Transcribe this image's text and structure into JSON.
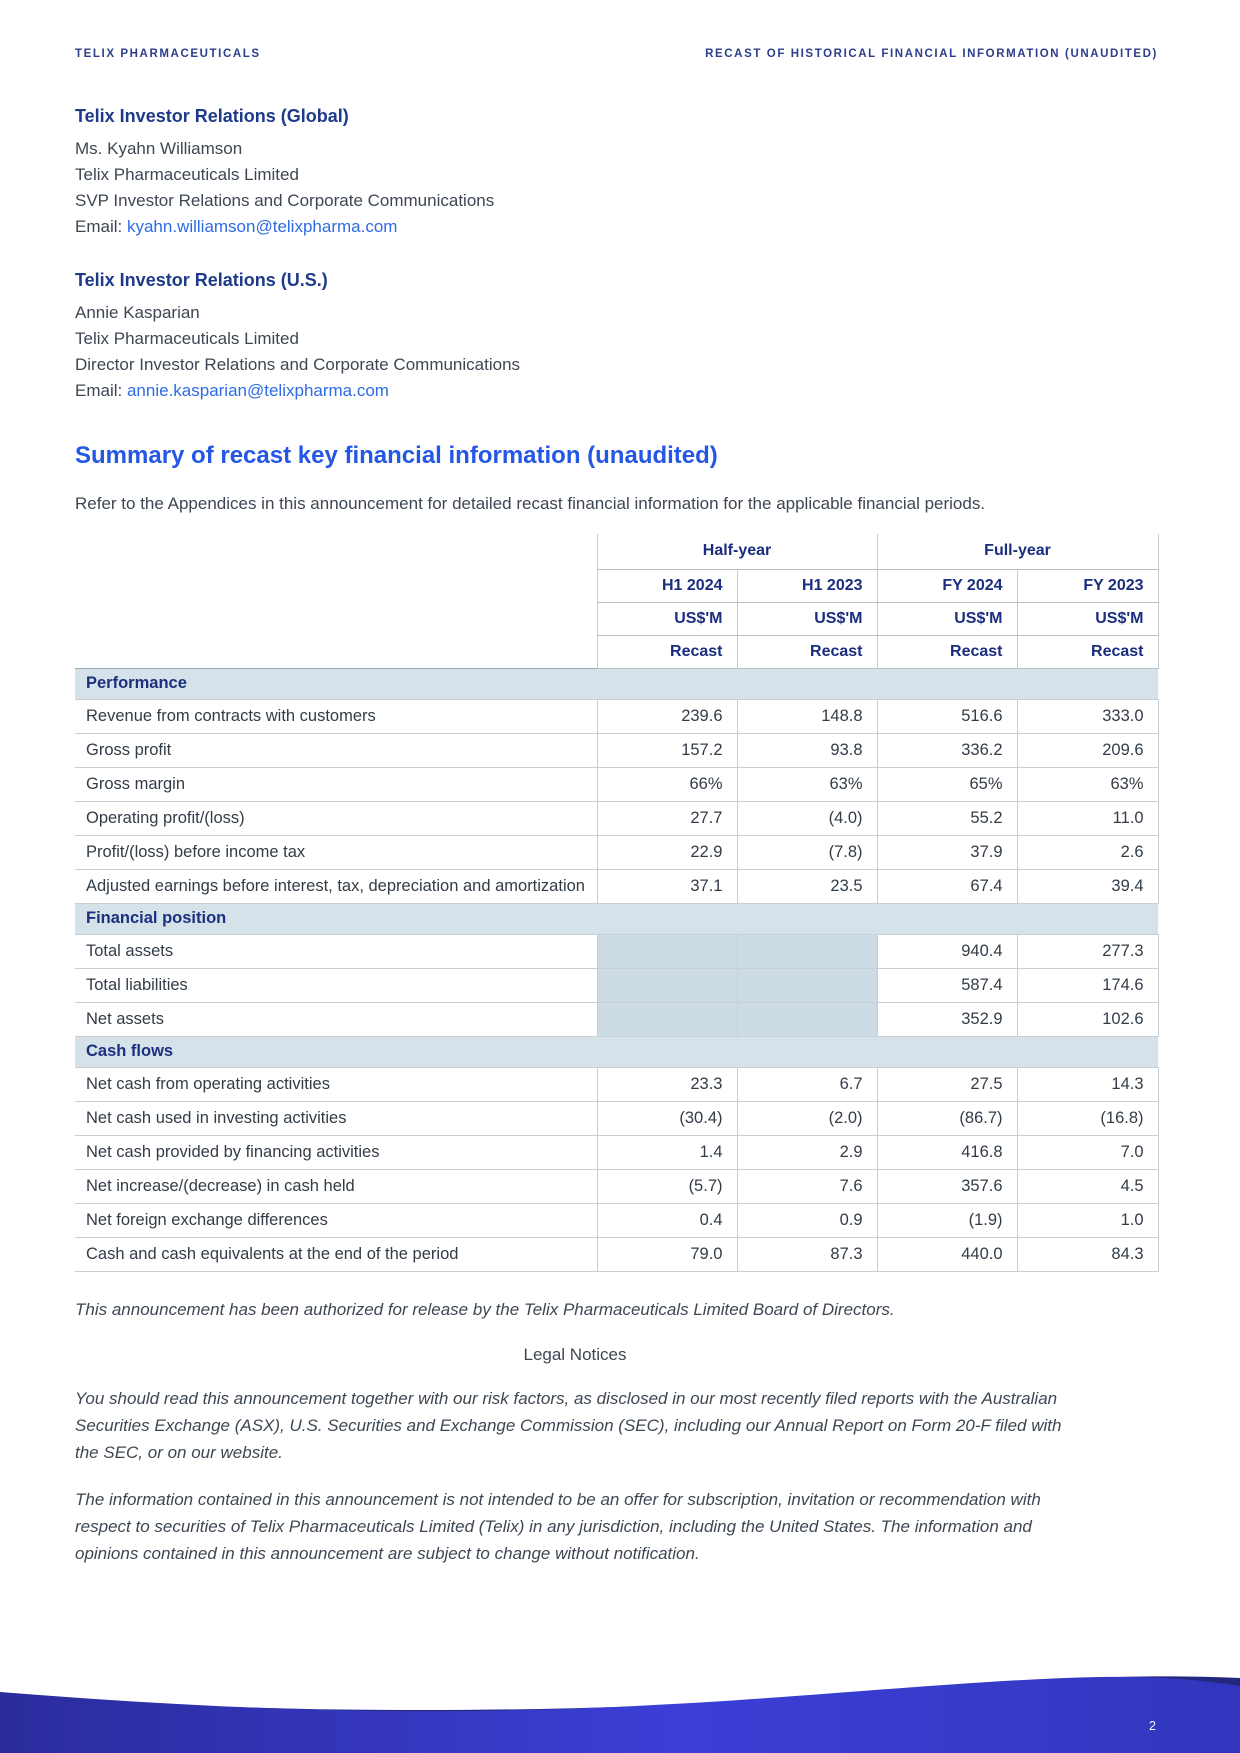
{
  "page": {
    "header_left": "TELIX PHARMACEUTICALS",
    "header_right": "RECAST OF HISTORICAL FINANCIAL INFORMATION (UNAUDITED)",
    "page_number": "2"
  },
  "contacts": [
    {
      "heading": "Telix Investor Relations (Global)",
      "lines": [
        "Ms. Kyahn Williamson",
        "Telix Pharmaceuticals Limited",
        "SVP Investor Relations and Corporate Communications"
      ],
      "email_label": "Email: ",
      "email": "kyahn.williamson@telixpharma.com"
    },
    {
      "heading": "Telix Investor Relations (U.S.)",
      "lines": [
        "Annie Kasparian",
        "Telix Pharmaceuticals Limited",
        "Director Investor Relations and Corporate Communications"
      ],
      "email_label": "Email: ",
      "email": "annie.kasparian@telixpharma.com"
    }
  ],
  "summary": {
    "title": "Summary of recast key financial information (unaudited)",
    "intro": "Refer to the Appendices in this announcement for detailed recast financial information for the applicable financial periods."
  },
  "table": {
    "groups": [
      {
        "label": "Half-year"
      },
      {
        "label": "Full-year"
      }
    ],
    "columns": [
      "H1 2024",
      "H1 2023",
      "FY 2024",
      "FY 2023"
    ],
    "unit_row": [
      "US$'M",
      "US$'M",
      "US$'M",
      "US$'M"
    ],
    "recast_row": [
      "Recast",
      "Recast",
      "Recast",
      "Recast"
    ],
    "sections": [
      {
        "title": "Performance",
        "rows": [
          {
            "label": "Revenue from contracts with customers",
            "values": [
              "239.6",
              "148.8",
              "516.6",
              "333.0"
            ]
          },
          {
            "label": "Gross profit",
            "values": [
              "157.2",
              "93.8",
              "336.2",
              "209.6"
            ]
          },
          {
            "label": "Gross margin",
            "values": [
              "66%",
              "63%",
              "65%",
              "63%"
            ]
          },
          {
            "label": "Operating profit/(loss)",
            "values": [
              "27.7",
              "(4.0)",
              "55.2",
              "11.0"
            ]
          },
          {
            "label": "Profit/(loss) before income tax",
            "values": [
              "22.9",
              "(7.8)",
              "37.9",
              "2.6"
            ]
          },
          {
            "label": "Adjusted earnings before interest, tax, depreciation and amortization",
            "values": [
              "37.1",
              "23.5",
              "67.4",
              "39.4"
            ]
          }
        ]
      },
      {
        "title": "Financial position",
        "rows": [
          {
            "label": "Total assets",
            "values": [
              "",
              "",
              "940.4",
              "277.3"
            ],
            "shaded": [
              0,
              1
            ]
          },
          {
            "label": "Total liabilities",
            "values": [
              "",
              "",
              "587.4",
              "174.6"
            ],
            "shaded": [
              0,
              1
            ]
          },
          {
            "label": "Net assets",
            "values": [
              "",
              "",
              "352.9",
              "102.6"
            ],
            "shaded": [
              0,
              1
            ]
          }
        ]
      },
      {
        "title": "Cash flows",
        "rows": [
          {
            "label": "Net cash from operating activities",
            "values": [
              "23.3",
              "6.7",
              "27.5",
              "14.3"
            ]
          },
          {
            "label": "Net cash used in investing activities",
            "values": [
              "(30.4)",
              "(2.0)",
              "(86.7)",
              "(16.8)"
            ]
          },
          {
            "label": "Net cash provided by financing activities",
            "values": [
              "1.4",
              "2.9",
              "416.8",
              "7.0"
            ]
          },
          {
            "label": "Net increase/(decrease) in cash held",
            "values": [
              "(5.7)",
              "7.6",
              "357.6",
              "4.5"
            ]
          },
          {
            "label": "Net foreign exchange differences",
            "values": [
              "0.4",
              "0.9",
              "(1.9)",
              "1.0"
            ]
          },
          {
            "label": "Cash and cash equivalents at the end of the period",
            "values": [
              "79.0",
              "87.3",
              "440.0",
              "84.3"
            ]
          }
        ]
      }
    ]
  },
  "notices": {
    "authorization": "This announcement has been authorized for release by the Telix Pharmaceuticals Limited Board of Directors.",
    "legal_title": "Legal Notices",
    "paragraphs": [
      "You should read this announcement together with our risk factors, as disclosed in our most recently filed reports with the Australian Securities Exchange (ASX), U.S. Securities and Exchange Commission (SEC), including our Annual Report on Form 20-F filed with the SEC, or on our website.",
      "The information contained in this announcement is not intended to be an offer for subscription, invitation or recommendation with respect to securities of Telix Pharmaceuticals Limited (Telix) in any jurisdiction, including the United States. The information and opinions contained in this announcement are subject to change without notification."
    ]
  },
  "footer": {
    "wave_color_left": "#2a2c9c",
    "wave_color_mid": "#3b3fd6",
    "wave_color_right": "#3136bd",
    "wave_back_color": "#23277e"
  }
}
